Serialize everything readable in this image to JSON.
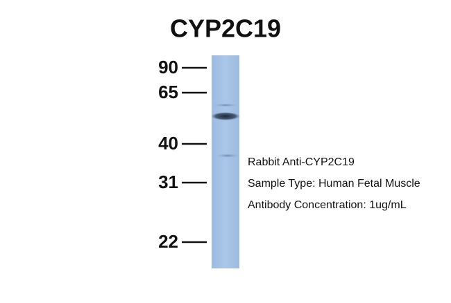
{
  "title": "CYP2C19",
  "markers": [
    "90",
    "65",
    "40",
    "31",
    "22"
  ],
  "annotations": [
    "Rabbit Anti-CYP2C19",
    "Sample Type: Human Fetal Muscle",
    "Antibody Concentration: 1ug/mL"
  ]
}
